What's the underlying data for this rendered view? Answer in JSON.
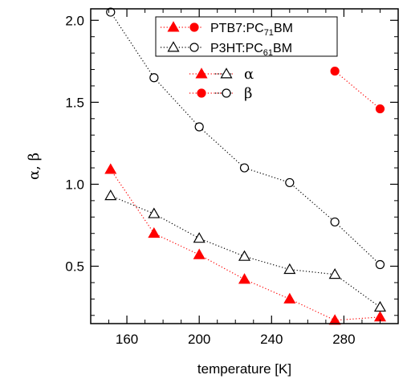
{
  "chart_data": {
    "type": "scatter",
    "xlabel": "temperature [K]",
    "ylabel": "α, β",
    "xlim": [
      140,
      310
    ],
    "ylim": [
      0.15,
      2.07
    ],
    "x_ticks": [
      160,
      200,
      240,
      280
    ],
    "y_ticks": [
      0.5,
      1.0,
      1.5,
      2.0
    ],
    "x_tick_labels": [
      "160",
      "200",
      "240",
      "280"
    ],
    "y_tick_labels": [
      "0.5",
      "1.0",
      "1.5",
      "2.0"
    ],
    "grid": false,
    "legend": {
      "position": "top-center",
      "materials": [
        {
          "label": "PTB7:PC71BM",
          "label_main": "PTB7:PC",
          "label_sub": "71",
          "label_tail": "BM",
          "color": "#ff0000"
        },
        {
          "label": "P3HT:PC61BM",
          "label_main": "P3HT:PC",
          "label_sub": "61",
          "label_tail": "BM",
          "color": "#000000"
        }
      ],
      "quantities": [
        {
          "label": "α",
          "marker": "triangle"
        },
        {
          "label": "β",
          "marker": "circle"
        }
      ]
    },
    "series": [
      {
        "material": "PTB7:PC71BM",
        "quantity": "α",
        "color": "#ff0000",
        "marker": "triangle",
        "filled": true,
        "x": [
          151,
          175,
          200,
          225,
          250,
          275,
          300
        ],
        "y": [
          1.09,
          0.7,
          0.57,
          0.42,
          0.3,
          0.17,
          0.19
        ]
      },
      {
        "material": "PTB7:PC71BM",
        "quantity": "β",
        "color": "#ff0000",
        "marker": "circle",
        "filled": true,
        "x": [
          275,
          300
        ],
        "y": [
          1.69,
          1.46
        ]
      },
      {
        "material": "P3HT:PC61BM",
        "quantity": "α",
        "color": "#000000",
        "marker": "triangle",
        "filled": false,
        "x": [
          151,
          175,
          200,
          225,
          250,
          275,
          300
        ],
        "y": [
          0.93,
          0.82,
          0.67,
          0.56,
          0.48,
          0.45,
          0.25
        ]
      },
      {
        "material": "P3HT:PC61BM",
        "quantity": "β",
        "color": "#000000",
        "marker": "circle",
        "filled": false,
        "x": [
          151,
          175,
          200,
          225,
          250,
          275,
          300
        ],
        "y": [
          2.05,
          1.65,
          1.35,
          1.1,
          1.01,
          0.77,
          0.51
        ]
      }
    ]
  }
}
